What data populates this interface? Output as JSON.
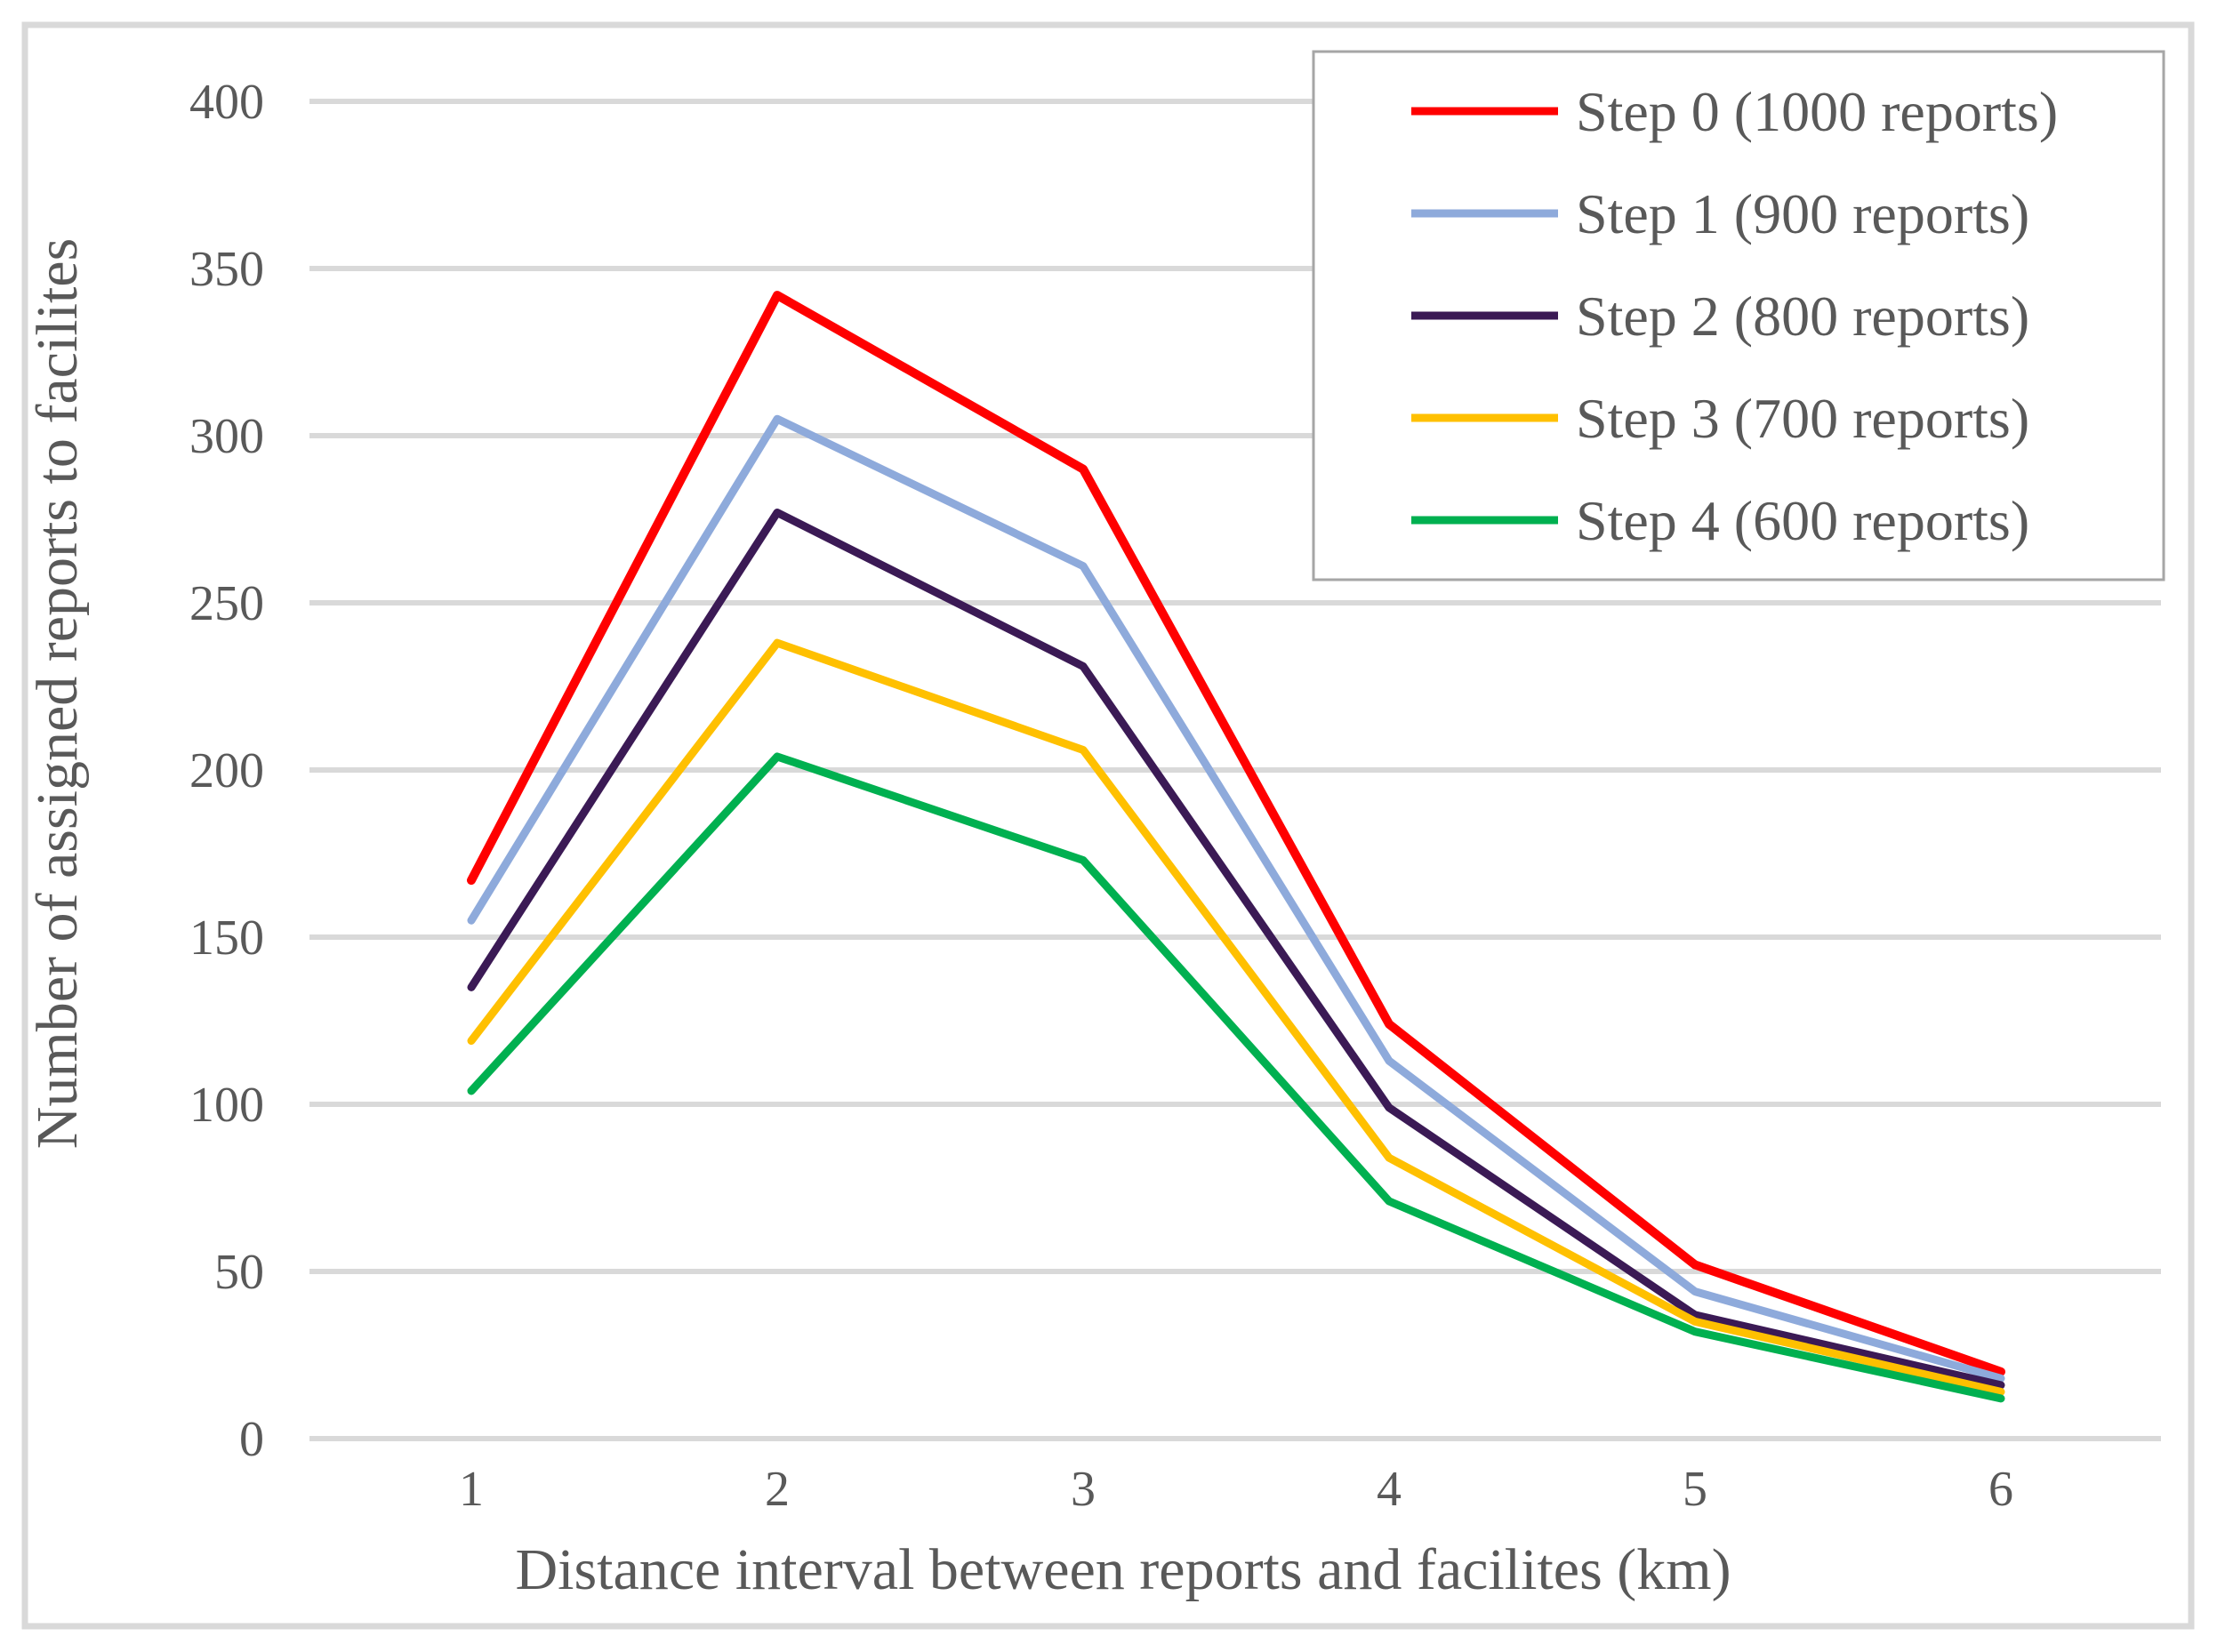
{
  "figure": {
    "border_color": "#d9d9d9",
    "background": "#ffffff"
  },
  "chart_data": {
    "type": "line",
    "title": "",
    "xlabel": "Distance interval between reports and facilites (km)",
    "ylabel": "Number of assigned reports to facilites",
    "x": [
      1,
      2,
      3,
      4,
      5,
      6
    ],
    "ylim": [
      0,
      400
    ],
    "yticks": [
      0,
      50,
      100,
      150,
      200,
      250,
      300,
      350,
      400
    ],
    "grid": "horizontal",
    "gridline_color": "#d9d9d9",
    "text_color": "#595959",
    "legend_position": "top-right",
    "legend_border_color": "#a6a6a6",
    "legend_background": "#ffffff",
    "series": [
      {
        "name": "Step 0 (1000 reports)",
        "color": "#ff0000",
        "values": [
          167,
          342,
          290,
          124,
          52,
          20
        ]
      },
      {
        "name": "Step 1 (900 reports)",
        "color": "#8eaadb",
        "values": [
          155,
          305,
          261,
          113,
          44,
          18
        ]
      },
      {
        "name": "Step 2 (800 reports)",
        "color": "#3b1a55",
        "values": [
          135,
          277,
          231,
          99,
          37,
          16
        ]
      },
      {
        "name": "Step 3 (700 reports)",
        "color": "#ffc000",
        "values": [
          119,
          238,
          206,
          84,
          35,
          14
        ]
      },
      {
        "name": "Step 4 (600 reports)",
        "color": "#00b050",
        "values": [
          104,
          204,
          173,
          71,
          32,
          12
        ]
      }
    ]
  }
}
